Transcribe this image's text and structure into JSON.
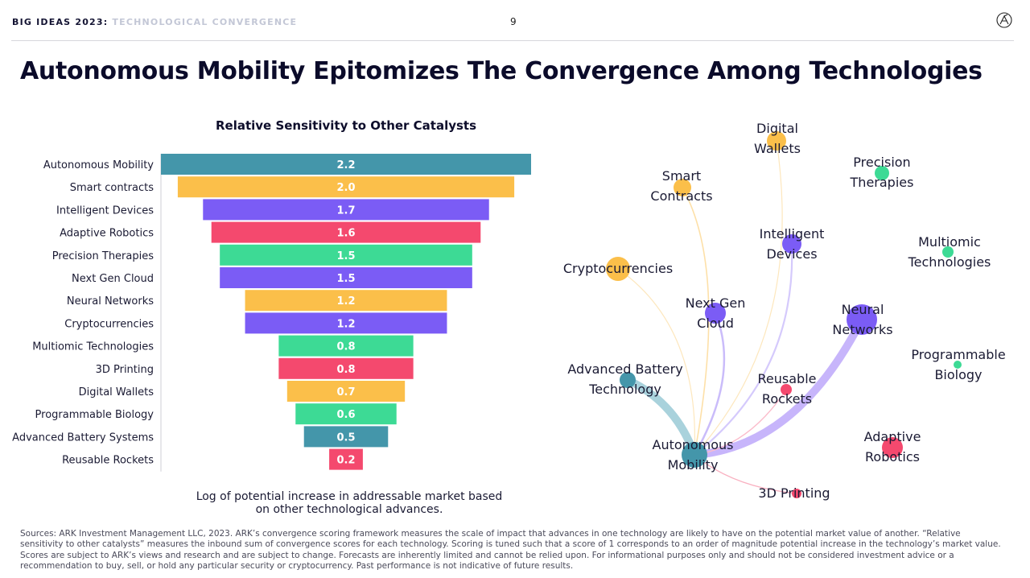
{
  "header": {
    "brand_bold": "BIG IDEAS 2023",
    "brand_colon": ":",
    "brand_sub": "TECHNOLOGICAL CONVERGENCE",
    "page_number": "9",
    "logo_icon": "ark-circle-logo-icon"
  },
  "title": "Autonomous Mobility Epitomizes The Convergence Among Technologies",
  "chart_data": {
    "type": "bar",
    "orientation": "horizontal-centered",
    "title": "Relative Sensitivity to Other Catalysts",
    "caption": "Log of potential increase in addressable market based on other technological advances.",
    "categories": [
      "Autonomous Mobility",
      "Smart contracts",
      "Intelligent Devices",
      "Adaptive Robotics",
      "Precision Therapies",
      "Next Gen Cloud",
      "Neural Networks",
      "Cryptocurrencies",
      "Multiomic Technologies",
      "3D Printing",
      "Digital Wallets",
      "Programmable Biology",
      "Advanced Battery Systems",
      "Reusable Rockets"
    ],
    "values": [
      2.2,
      2.0,
      1.7,
      1.6,
      1.5,
      1.5,
      1.2,
      1.2,
      0.8,
      0.8,
      0.7,
      0.6,
      0.5,
      0.2
    ],
    "value_labels": [
      "2.2",
      "2.0",
      "1.7",
      "1.6",
      "1.5",
      "1.5",
      "1.2",
      "1.2",
      "0.8",
      "0.8",
      "0.7",
      "0.6",
      "0.5",
      "0.2"
    ],
    "colors": [
      "#4496aa",
      "#fbbf4a",
      "#7b5cf5",
      "#f4496e",
      "#3dda95",
      "#7b5cf5",
      "#fbbf4a",
      "#7b5cf5",
      "#3dda95",
      "#f4496e",
      "#fbbf4a",
      "#3dda95",
      "#4496aa",
      "#f4496e"
    ]
  },
  "network": {
    "nodes": [
      {
        "id": "digital-wallets",
        "lines": [
          "Digital",
          "Wallets"
        ],
        "color": "#fbbf4a"
      },
      {
        "id": "precision-therapies",
        "lines": [
          "Precision",
          "Therapies"
        ],
        "color": "#3dda95"
      },
      {
        "id": "smart-contracts",
        "lines": [
          "Smart",
          "Contracts"
        ],
        "color": "#fbbf4a"
      },
      {
        "id": "intelligent-devices",
        "lines": [
          "Intelligent",
          "Devices"
        ],
        "color": "#7b5cf5"
      },
      {
        "id": "multiomic-technologies",
        "lines": [
          "Multiomic",
          "Technologies"
        ],
        "color": "#3dda95"
      },
      {
        "id": "cryptocurrencies",
        "lines": [
          "Cryptocurrencies"
        ],
        "color": "#fbbf4a"
      },
      {
        "id": "next-gen-cloud",
        "lines": [
          "Next Gen",
          "Cloud"
        ],
        "color": "#7b5cf5"
      },
      {
        "id": "neural-networks",
        "lines": [
          "Neural",
          "Networks"
        ],
        "color": "#7b5cf5"
      },
      {
        "id": "programmable-biology",
        "lines": [
          "Programmable",
          "Biology"
        ],
        "color": "#3dda95"
      },
      {
        "id": "advanced-battery-technology",
        "lines": [
          "Advanced Battery",
          "Technology"
        ],
        "color": "#4496aa"
      },
      {
        "id": "reusable-rockets",
        "lines": [
          "Reusable",
          "Rockets"
        ],
        "color": "#f4496e"
      },
      {
        "id": "autonomous-mobility",
        "lines": [
          "Autonomous",
          "Mobility"
        ],
        "color": "#4496aa"
      },
      {
        "id": "adaptive-robotics",
        "lines": [
          "Adaptive",
          "Robotics"
        ],
        "color": "#f4496e"
      },
      {
        "id": "3d-printing",
        "lines": [
          "3D Printing"
        ],
        "color": "#f4496e"
      }
    ],
    "links": [
      {
        "from": "neural-networks",
        "to": "autonomous-mobility",
        "color": "#c7b5fb"
      },
      {
        "from": "advanced-battery-technology",
        "to": "autonomous-mobility",
        "color": "#a9d2dc"
      },
      {
        "from": "intelligent-devices",
        "to": "autonomous-mobility",
        "color": "#d5cafc"
      },
      {
        "from": "next-gen-cloud",
        "to": "autonomous-mobility",
        "color": "#cabcfa"
      },
      {
        "from": "digital-wallets",
        "to": "autonomous-mobility",
        "color": "#fde7bd"
      },
      {
        "from": "smart-contracts",
        "to": "autonomous-mobility",
        "color": "#fde0a8"
      },
      {
        "from": "cryptocurrencies",
        "to": "autonomous-mobility",
        "color": "#fde7bd"
      },
      {
        "from": "reusable-rockets",
        "to": "autonomous-mobility",
        "color": "#fbbccb"
      },
      {
        "from": "autonomous-mobility",
        "to": "3d-printing",
        "color": "#f9b0c0"
      }
    ]
  },
  "sources": "Sources: ARK Investment Management LLC, 2023. ARK’s convergence scoring framework measures the scale of impact that advances in one technology are likely to have on the potential market value of another. “Relative sensitivity to other catalysts” measures the inbound sum of convergence scores for each technology. Scoring is tuned such that a score of 1 corresponds to an order of magnitude potential increase in the technology’s market value. Scores are subject to ARK’s views and research and are subject to change. Forecasts are inherently limited and cannot be relied upon. For informational purposes only and should not be considered investment advice or a recommendation to buy, sell, or hold any particular security or cryptocurrency. Past performance is not indicative of future results."
}
